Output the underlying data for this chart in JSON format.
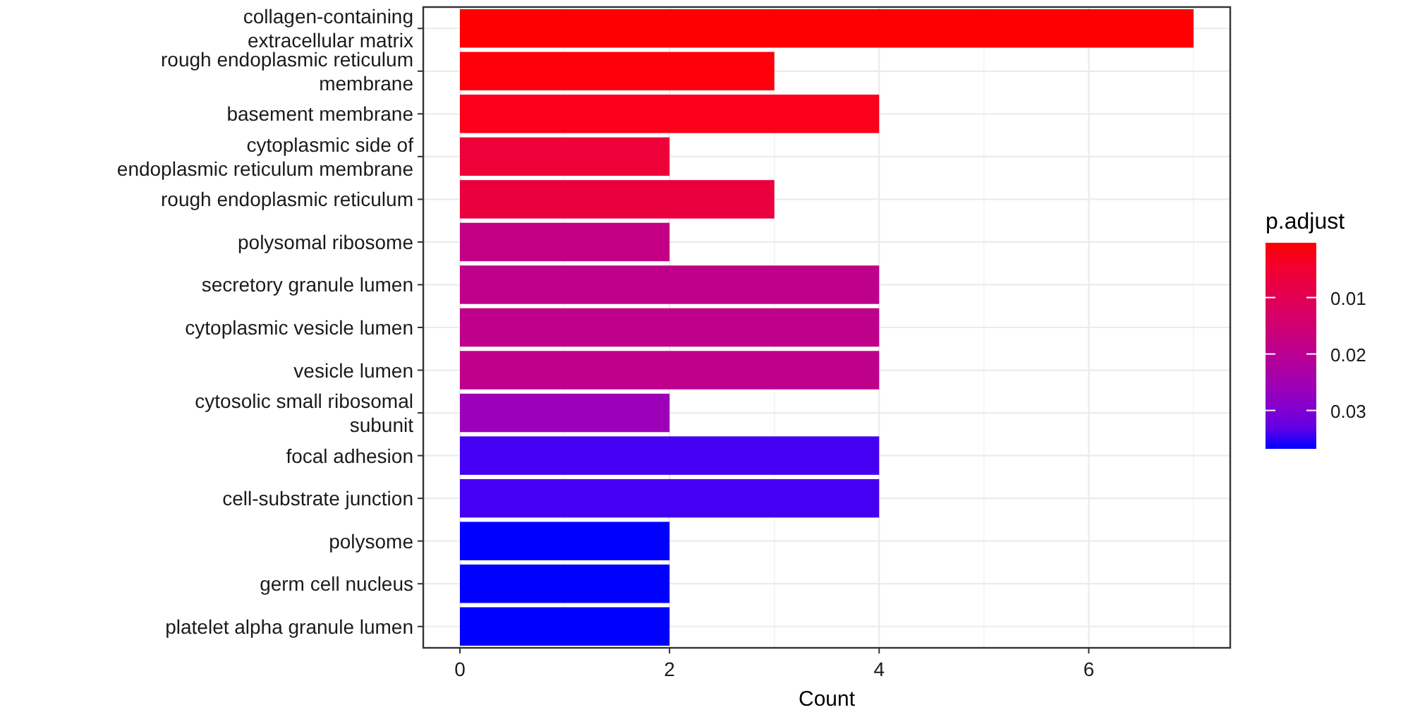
{
  "chart_data": {
    "type": "bar",
    "orientation": "horizontal",
    "xlabel": "Count",
    "clabel": "p.adjust",
    "categories": [
      "collagen-containing extracellular matrix",
      "rough endoplasmic reticulum membrane",
      "basement membrane",
      "cytoplasmic side of endoplasmic reticulum membrane",
      "rough endoplasmic reticulum",
      "polysomal ribosome",
      "secretory granule lumen",
      "cytoplasmic vesicle lumen",
      "vesicle lumen",
      "cytosolic small ribosomal subunit",
      "focal adhesion",
      "cell-substrate junction",
      "polysome",
      "germ cell nucleus",
      "platelet alpha granule lumen"
    ],
    "values": [
      7,
      3,
      4,
      2,
      3,
      2,
      4,
      4,
      4,
      2,
      4,
      4,
      2,
      2,
      2
    ],
    "cvalues": [
      0.0003,
      0.001,
      0.002,
      0.006,
      0.007,
      0.018,
      0.019,
      0.019,
      0.019,
      0.026,
      0.035,
      0.035,
      0.0368,
      0.0368,
      0.0368
    ],
    "clim": [
      0.0003,
      0.0368
    ],
    "cticks": [
      0.01,
      0.02,
      0.03
    ],
    "xlim": [
      -0.35,
      7.35
    ],
    "xticks": [
      0,
      2,
      4,
      6
    ],
    "grid": true
  }
}
